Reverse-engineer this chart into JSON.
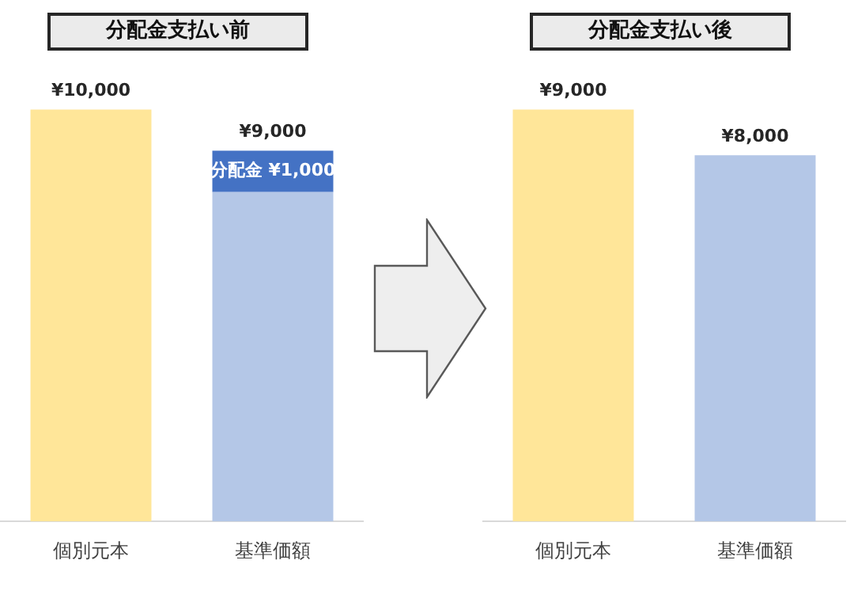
{
  "chart_data": [
    {
      "type": "bar",
      "title": "分配金支払い前",
      "categories": [
        "個別元本",
        "基準価額"
      ],
      "stacked": true,
      "tick_labels": "x",
      "legend": false,
      "series": [
        {
          "colors": [
            "#ffe699",
            "#b4c7e7"
          ],
          "values": [
            10000,
            8000
          ]
        },
        {
          "color": "#4472c4",
          "values": [
            null,
            1000
          ],
          "value_labels": [
            null,
            "分配金 ¥1,000"
          ]
        }
      ],
      "totals": [
        "¥10,000",
        "¥9,000"
      ]
    },
    {
      "type": "bar",
      "title": "分配金支払い後",
      "categories": [
        "個別元本",
        "基準価額"
      ],
      "tick_labels": "x",
      "legend": false,
      "series": [
        {
          "colors": [
            "#ffe699",
            "#b4c7e7"
          ],
          "values": [
            9000,
            8000
          ],
          "value_labels": [
            "¥9,000",
            "¥8,000"
          ]
        }
      ]
    }
  ]
}
